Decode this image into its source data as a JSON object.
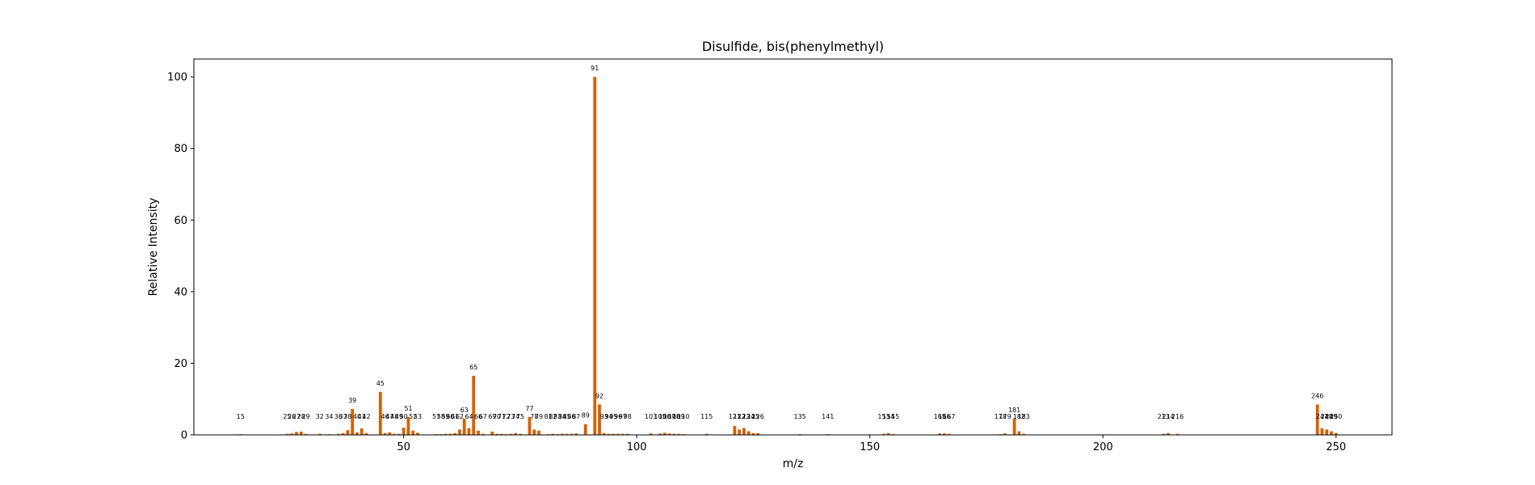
{
  "chart_data": {
    "type": "bar",
    "title": "Disulfide, bis(phenylmethyl)",
    "xlabel": "m/z",
    "ylabel": "Relative Intensity",
    "xlim": [
      5,
      262
    ],
    "ylim": [
      0,
      105
    ],
    "xticks": [
      50,
      100,
      150,
      200,
      250
    ],
    "yticks": [
      0,
      20,
      40,
      60,
      80,
      100
    ],
    "bar_color": "#d95f02",
    "grid": false,
    "legend": "none",
    "series": [
      {
        "mz": [
          15,
          25,
          26,
          27,
          28,
          29,
          32,
          34,
          36,
          37,
          38,
          39,
          40,
          41,
          42,
          45,
          46,
          47,
          48,
          49,
          50,
          51,
          52,
          53,
          57,
          58,
          59,
          60,
          61,
          62,
          63,
          64,
          65,
          66,
          67,
          69,
          70,
          71,
          72,
          73,
          74,
          75,
          77,
          78,
          79,
          81,
          82,
          83,
          84,
          85,
          86,
          87,
          89,
          91,
          92,
          93,
          94,
          95,
          96,
          97,
          98,
          103,
          105,
          106,
          107,
          108,
          109,
          110,
          115,
          121,
          122,
          123,
          124,
          125,
          126,
          135,
          141,
          153,
          154,
          155,
          165,
          166,
          167,
          178,
          179,
          181,
          182,
          183,
          213,
          214,
          216,
          246,
          247,
          248,
          249,
          250
        ],
        "intensity": [
          0.2,
          0.3,
          0.4,
          0.8,
          0.9,
          0.3,
          0.3,
          0.2,
          0.3,
          0.5,
          1.3,
          7.2,
          0.7,
          1.8,
          0.5,
          12.0,
          0.5,
          0.7,
          0.3,
          0.3,
          2.0,
          5.0,
          1.2,
          0.6,
          0.2,
          0.2,
          0.3,
          0.3,
          0.5,
          1.5,
          4.5,
          1.9,
          16.5,
          1.2,
          0.3,
          0.9,
          0.3,
          0.3,
          0.2,
          0.3,
          0.5,
          0.3,
          5.0,
          1.5,
          1.2,
          0.2,
          0.3,
          0.2,
          0.3,
          0.3,
          0.3,
          0.4,
          3.0,
          100.0,
          8.5,
          0.5,
          0.3,
          0.3,
          0.3,
          0.3,
          0.3,
          0.4,
          0.4,
          0.6,
          0.4,
          0.3,
          0.3,
          0.2,
          0.3,
          2.5,
          1.5,
          1.9,
          1.0,
          0.5,
          0.5,
          0.2,
          0.2,
          0.3,
          0.5,
          0.2,
          0.4,
          0.4,
          0.3,
          0.2,
          0.4,
          4.5,
          1.0,
          0.3,
          0.3,
          0.5,
          0.3,
          8.5,
          1.8,
          1.5,
          1.0,
          0.5
        ]
      }
    ]
  }
}
